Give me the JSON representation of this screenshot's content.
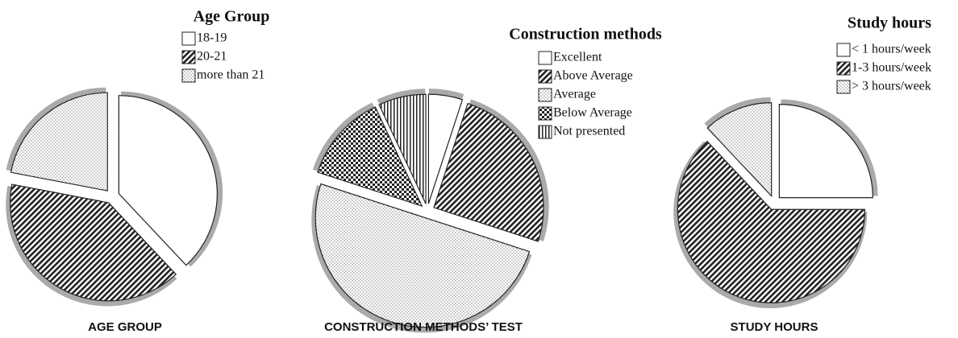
{
  "chart_data": [
    {
      "type": "pie",
      "title": "Age Group",
      "caption": "AGE GROUP",
      "categories": [
        "18-19",
        "20-21",
        "more than 21"
      ],
      "values": [
        38,
        40,
        22
      ],
      "patterns": [
        "white",
        "hatch",
        "dots"
      ]
    },
    {
      "type": "pie",
      "title": "Construction methods",
      "caption": "CONSTRUCTION METHODS’ TEST",
      "categories": [
        "Excellent",
        "Above Average",
        "Average",
        "Below Average",
        "Not presented"
      ],
      "values": [
        5,
        25,
        50,
        13,
        7
      ],
      "patterns": [
        "white",
        "hatch",
        "dots",
        "checker",
        "vertical"
      ]
    },
    {
      "type": "pie",
      "title": "Study hours",
      "caption": "STUDY HOURS",
      "categories": [
        "< 1 hours/week",
        "1-3 hours/week",
        "> 3 hours/week"
      ],
      "values": [
        25,
        63,
        12
      ],
      "patterns": [
        "white",
        "hatch",
        "dots"
      ]
    }
  ]
}
